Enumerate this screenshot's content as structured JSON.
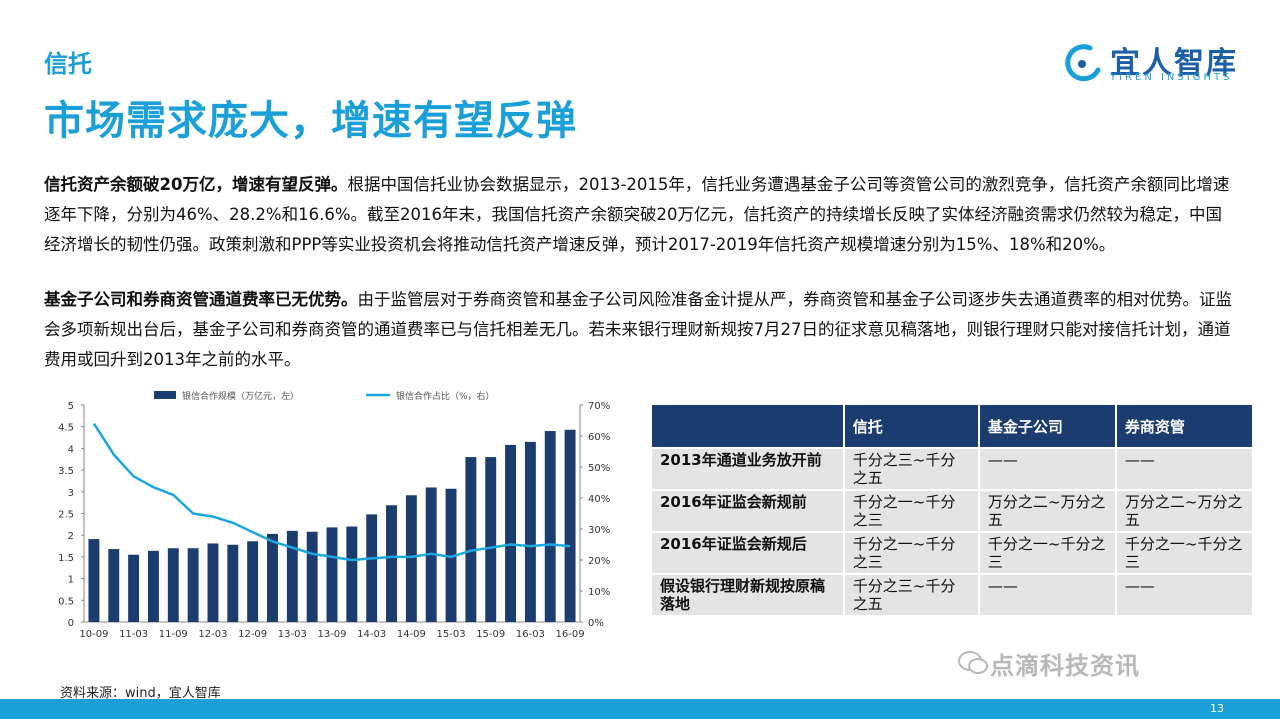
{
  "section": "信托",
  "title": "市场需求庞大，增速有望反弹",
  "logo": {
    "cn": "宜人智库",
    "en": "YIREN INSIGHTS"
  },
  "para1": {
    "bold": "信托资产余额破20万亿，增速有望反弹。",
    "text": "根据中国信托业协会数据显示，2013-2015年，信托业务遭遇基金子公司等资管公司的激烈竞争，信托资产余额同比增速逐年下降，分别为46%、28.2%和16.6%。截至2016年末，我国信托资产余额突破20万亿元，信托资产的持续增长反映了实体经济融资需求仍然较为稳定，中国经济增长的韧性仍强。政策刺激和PPP等实业投资机会将推动信托资产增速反弹，预计2017-2019年信托资产规模增速分别为15%、18%和20%。"
  },
  "para2": {
    "bold": "基金子公司和券商资管通道费率已无优势。",
    "text": "由于监管层对于券商资管和基金子公司风险准备金计提从严，券商资管和基金子公司逐步失去通道费率的相对优势。证监会多项新规出台后，基金子公司和券商资管的通道费率已与信托相差无几。若未来银行理财新规按7月27日的征求意见稿落地，则银行理财只能对接信托计划，通道费用或回升到2013年之前的水平。"
  },
  "chart_data": {
    "type": "bar",
    "categories": [
      "10-09",
      "10-12",
      "11-03",
      "11-06",
      "11-09",
      "11-12",
      "12-03",
      "12-06",
      "12-09",
      "12-12",
      "13-03",
      "13-06",
      "13-09",
      "13-12",
      "14-03",
      "14-06",
      "14-09",
      "14-12",
      "15-03",
      "15-06",
      "15-09",
      "15-12",
      "16-03",
      "16-06",
      "16-09"
    ],
    "tick_labels": [
      "10-09",
      "11-03",
      "11-09",
      "12-03",
      "12-09",
      "13-03",
      "13-09",
      "14-03",
      "14-09",
      "15-03",
      "15-09",
      "16-03",
      "16-09"
    ],
    "series": [
      {
        "name": "银信合作规模（万亿元，左）",
        "type": "bar",
        "axis": "left",
        "color": "#1b3c6e",
        "values": [
          1.91,
          1.68,
          1.55,
          1.64,
          1.7,
          1.7,
          1.81,
          1.78,
          1.86,
          2.03,
          2.1,
          2.08,
          2.18,
          2.2,
          2.48,
          2.69,
          2.92,
          3.1,
          3.07,
          3.8,
          3.8,
          4.08,
          4.15,
          4.4,
          4.43
        ]
      },
      {
        "name": "银信合作占比（%，右）",
        "type": "line",
        "axis": "right",
        "color": "#1aa7e0",
        "values": [
          64,
          54,
          47,
          43.5,
          41,
          35,
          34,
          32,
          29,
          26,
          24,
          22,
          21,
          20,
          20.5,
          21,
          21,
          22,
          21,
          23,
          24,
          25,
          24.5,
          25,
          24.5
        ]
      }
    ],
    "ylim_left": [
      0,
      5
    ],
    "yticks_left": [
      "0",
      "0.5",
      "1",
      "1.5",
      "2",
      "2.5",
      "3",
      "3.5",
      "4",
      "4.5",
      "5"
    ],
    "ylim_right": [
      0,
      70
    ],
    "yticks_right": [
      "0%",
      "10%",
      "20%",
      "30%",
      "40%",
      "50%",
      "60%",
      "70%"
    ],
    "legend": "top"
  },
  "table": {
    "headers": [
      "",
      "信托",
      "基金子公司",
      "券商资管"
    ],
    "rows": [
      [
        "2013年通道业务放开前",
        "千分之三~千分之五",
        "——",
        "——"
      ],
      [
        "2016年证监会新规前",
        "千分之一~千分之三",
        "万分之二~万分之五",
        "万分之二~万分之五"
      ],
      [
        "2016年证监会新规后",
        "千分之一~千分之三",
        "千分之一~千分之三",
        "千分之一~千分之三"
      ],
      [
        "假设银行理财新规按原稿落地",
        "千分之三~千分之五",
        "——",
        "——"
      ]
    ]
  },
  "source": "资料来源：wind，宜人智库",
  "watermark": "点滴科技资讯",
  "page_number": "13"
}
